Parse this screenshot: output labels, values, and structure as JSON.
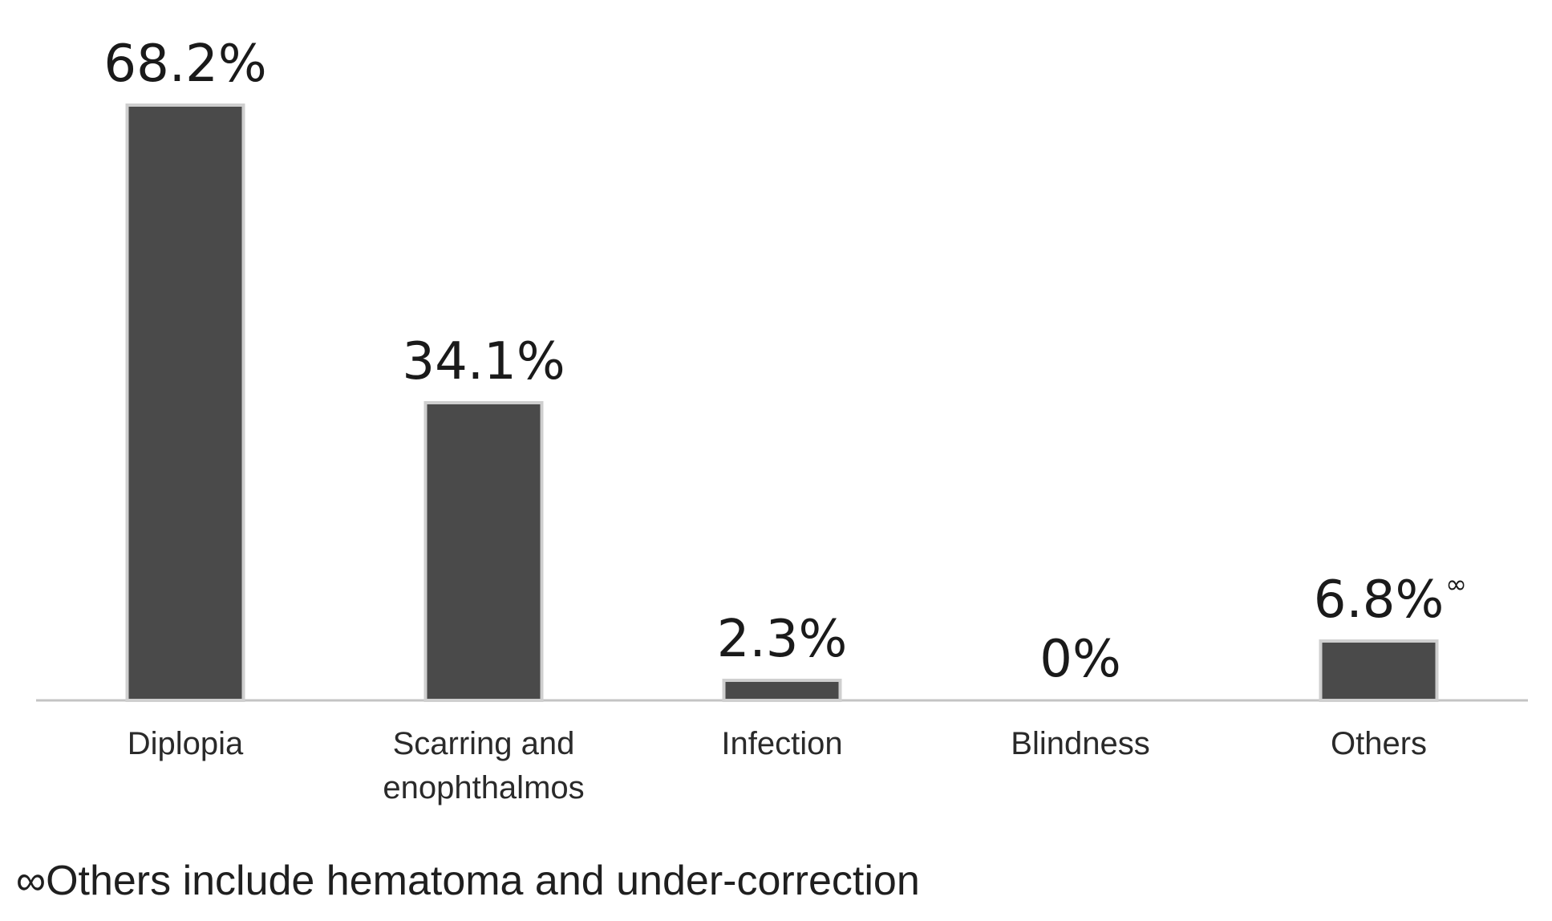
{
  "chart_data": {
    "type": "bar",
    "categories": [
      [
        "Diplopia"
      ],
      [
        "Scarring and",
        "enophthalmos"
      ],
      [
        "Infection"
      ],
      [
        "Blindness"
      ],
      [
        "Others"
      ]
    ],
    "values": [
      68.2,
      34.1,
      2.3,
      0,
      6.8
    ],
    "value_labels": [
      "68.2%",
      "34.1%",
      "2.3%",
      "0%",
      "6.8%"
    ],
    "value_label_marks": [
      "",
      "",
      "",
      "",
      "∞"
    ],
    "ylim": [
      0,
      68.2
    ],
    "grid": false,
    "legend": "none",
    "title": "",
    "xlabel": "",
    "ylabel": ""
  },
  "footnote": "∞Others include hematoma and under-correction",
  "colors": {
    "bar": "#4a4a4a",
    "bar_edge": "#cfcfcf",
    "axis": "#c4c4c4",
    "value_text": "#1a1a1a",
    "category_text": "#2a2a2a"
  }
}
